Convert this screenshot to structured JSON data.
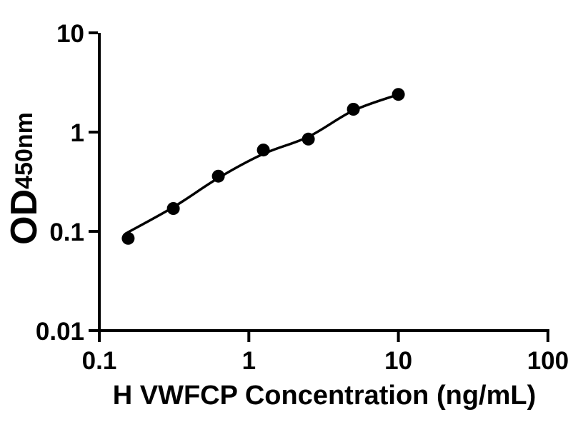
{
  "figure": {
    "background_color": "#ffffff",
    "ink_color": "#000000"
  },
  "chart_data": {
    "type": "scatter",
    "title": "",
    "xlabel": "H VWFCP Concentration (ng/mL)",
    "ylabel": "OD",
    "ylabel_subscript": "450nm",
    "x_scale": "log",
    "y_scale": "log",
    "xlim": [
      0.1,
      100
    ],
    "ylim": [
      0.01,
      10
    ],
    "grid": false,
    "legend": false,
    "x_ticks": [
      {
        "value": 0.1,
        "label": "0.1"
      },
      {
        "value": 1,
        "label": "1"
      },
      {
        "value": 10,
        "label": "10"
      },
      {
        "value": 100,
        "label": "100"
      }
    ],
    "y_ticks": [
      {
        "value": 10,
        "label": "10"
      },
      {
        "value": 1,
        "label": "1"
      },
      {
        "value": 0.1,
        "label": "0.1"
      },
      {
        "value": 0.01,
        "label": "0.01"
      }
    ],
    "series": [
      {
        "name": "standard-data-points",
        "type": "scatter",
        "marker": "filled-circle",
        "marker_color": "#000000",
        "points": [
          {
            "x": 0.156,
            "y": 0.085
          },
          {
            "x": 0.3125,
            "y": 0.17
          },
          {
            "x": 0.625,
            "y": 0.36
          },
          {
            "x": 1.25,
            "y": 0.66
          },
          {
            "x": 2.5,
            "y": 0.85
          },
          {
            "x": 5,
            "y": 1.7
          },
          {
            "x": 10,
            "y": 2.4
          }
        ]
      },
      {
        "name": "fitted-curve",
        "type": "line",
        "line_color": "#000000",
        "points": [
          {
            "x": 0.15,
            "y": 0.095
          },
          {
            "x": 0.314,
            "y": 0.176
          },
          {
            "x": 0.627,
            "y": 0.346
          },
          {
            "x": 1.24,
            "y": 0.6
          },
          {
            "x": 2.51,
            "y": 0.9
          },
          {
            "x": 4.97,
            "y": 1.64
          },
          {
            "x": 9.8,
            "y": 2.37
          }
        ]
      }
    ]
  }
}
